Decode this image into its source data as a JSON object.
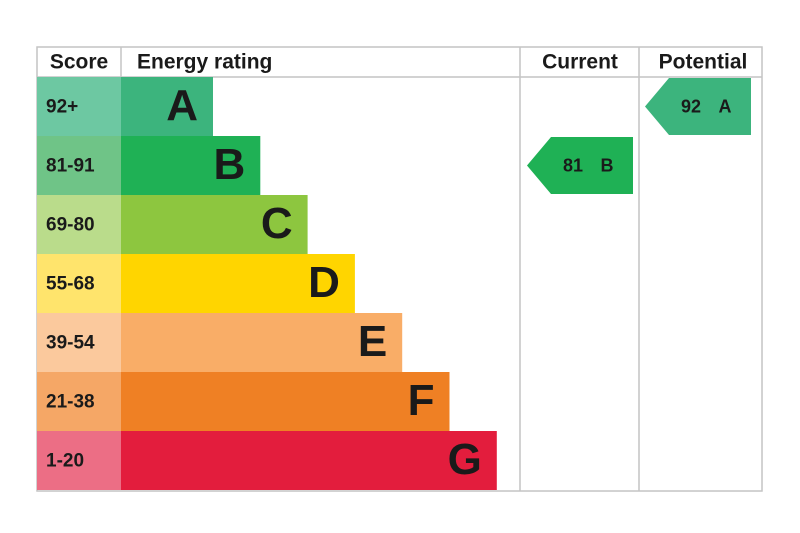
{
  "header": {
    "score": "Score",
    "rating": "Energy rating",
    "current": "Current",
    "potential": "Potential"
  },
  "bands": [
    {
      "range": "92+",
      "letter": "A",
      "color": "#3cb47d",
      "score_color": "#6dc8a2"
    },
    {
      "range": "81-91",
      "letter": "B",
      "color": "#1fb155",
      "score_color": "#6fc487"
    },
    {
      "range": "69-80",
      "letter": "C",
      "color": "#8dc63f",
      "score_color": "#badc8b"
    },
    {
      "range": "55-68",
      "letter": "D",
      "color": "#ffd500",
      "score_color": "#ffe46c"
    },
    {
      "range": "39-54",
      "letter": "E",
      "color": "#f9ad67",
      "score_color": "#fbc99d"
    },
    {
      "range": "21-38",
      "letter": "F",
      "color": "#ef8024",
      "score_color": "#f5a766"
    },
    {
      "range": "1-20",
      "letter": "G",
      "color": "#e31d3d",
      "score_color": "#ec6e85"
    }
  ],
  "current": {
    "value": 81,
    "letter": "B"
  },
  "potential": {
    "value": 92,
    "letter": "A"
  }
}
